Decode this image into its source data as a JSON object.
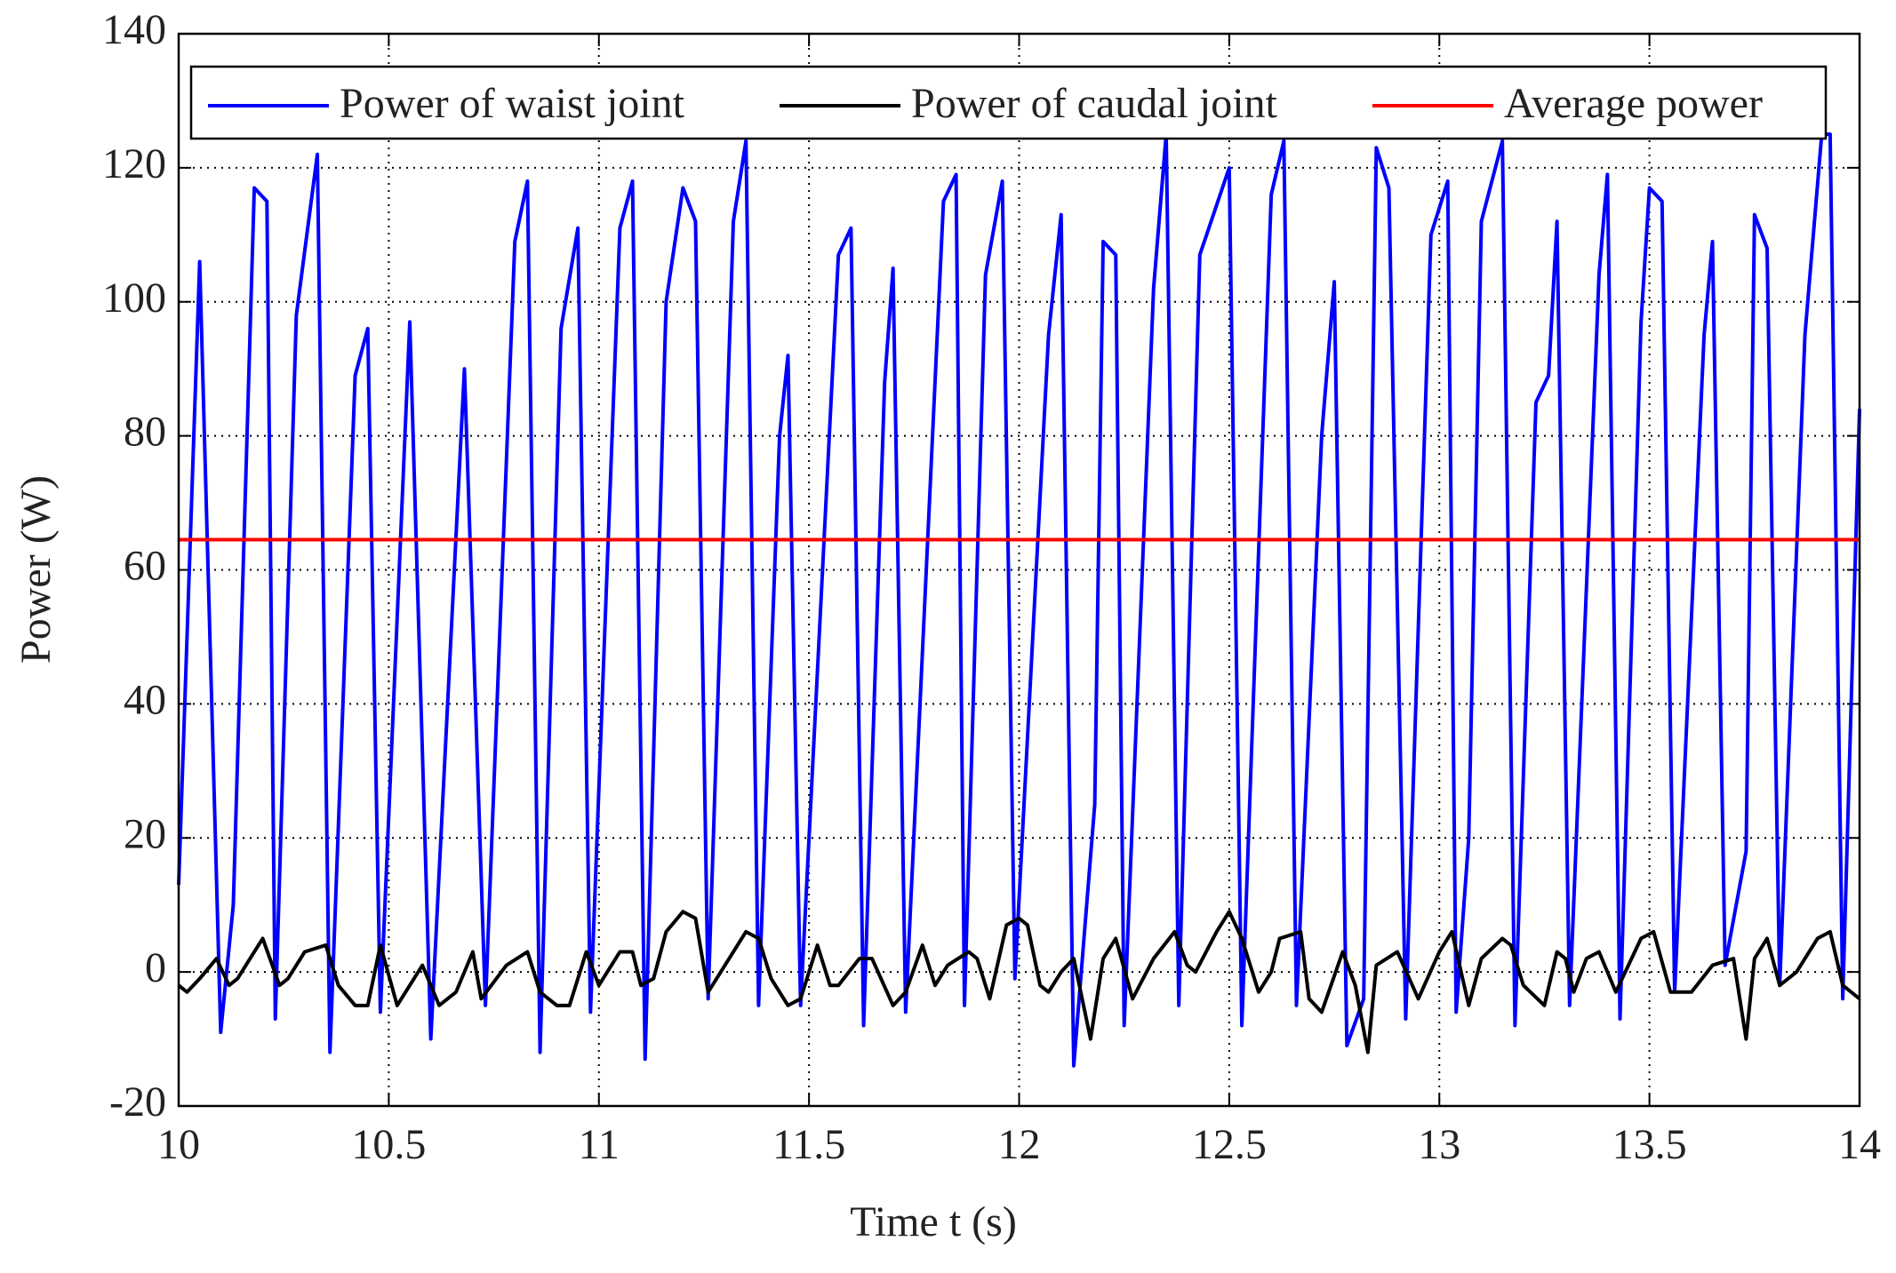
{
  "chart_data": {
    "type": "line",
    "xlabel": "Time t (s)",
    "ylabel": "Power (W)",
    "xlim": [
      10,
      14
    ],
    "xticks": [
      10,
      10.5,
      11,
      11.5,
      12,
      12.5,
      13,
      13.5,
      14
    ],
    "ylim": [
      -20,
      140
    ],
    "yticks": [
      -20,
      0,
      20,
      40,
      60,
      80,
      100,
      120,
      140
    ],
    "grid": true,
    "legend": "top",
    "series": [
      {
        "name": "Power of waist joint",
        "color": "#0000ff",
        "x": [
          10.0,
          10.05,
          10.1,
          10.13,
          10.18,
          10.21,
          10.23,
          10.28,
          10.33,
          10.36,
          10.42,
          10.45,
          10.48,
          10.55,
          10.6,
          10.68,
          10.73,
          10.8,
          10.83,
          10.86,
          10.91,
          10.95,
          10.98,
          11.05,
          11.08,
          11.11,
          11.16,
          11.2,
          11.23,
          11.26,
          11.32,
          11.35,
          11.38,
          11.43,
          11.45,
          11.48,
          11.57,
          11.6,
          11.63,
          11.68,
          11.7,
          11.73,
          11.82,
          11.85,
          11.87,
          11.92,
          11.96,
          11.99,
          12.07,
          12.1,
          12.13,
          12.18,
          12.2,
          12.23,
          12.25,
          12.32,
          12.35,
          12.38,
          12.43,
          12.5,
          12.53,
          12.6,
          12.63,
          12.66,
          12.72,
          12.75,
          12.78,
          12.82,
          12.85,
          12.88,
          12.92,
          12.98,
          13.02,
          13.04,
          13.07,
          13.1,
          13.15,
          13.18,
          13.23,
          13.26,
          13.28,
          13.31,
          13.38,
          13.4,
          13.43,
          13.48,
          13.5,
          13.53,
          13.56,
          13.63,
          13.65,
          13.68,
          13.73,
          13.75,
          13.78,
          13.81,
          13.87,
          13.91,
          13.93,
          13.96,
          14.0
        ],
        "values": [
          13,
          106,
          -9,
          10,
          117,
          115,
          -7,
          98,
          122,
          -12,
          89,
          96,
          -6,
          97,
          -10,
          90,
          -5,
          109,
          118,
          -12,
          96,
          111,
          -6,
          111,
          118,
          -13,
          100,
          117,
          112,
          -4,
          112,
          124,
          -5,
          80,
          92,
          -5,
          107,
          111,
          -8,
          88,
          105,
          -6,
          115,
          119,
          -5,
          104,
          118,
          -1,
          95,
          113,
          -14,
          25,
          109,
          107,
          -8,
          102,
          125,
          -5,
          107,
          120,
          -8,
          116,
          124,
          -5,
          80,
          103,
          -11,
          -4,
          123,
          117,
          -7,
          110,
          118,
          -6,
          20,
          112,
          124,
          -8,
          85,
          89,
          112,
          -5,
          104,
          119,
          -7,
          97,
          117,
          115,
          -3,
          95,
          109,
          1,
          18,
          113,
          108,
          -2,
          95,
          125,
          125,
          -4,
          84
        ]
      },
      {
        "name": "Power of caudal joint",
        "color": "#000000",
        "x": [
          10.0,
          10.02,
          10.05,
          10.09,
          10.12,
          10.14,
          10.18,
          10.2,
          10.24,
          10.26,
          10.3,
          10.35,
          10.38,
          10.42,
          10.45,
          10.48,
          10.52,
          10.58,
          10.62,
          10.66,
          10.7,
          10.72,
          10.78,
          10.83,
          10.86,
          10.9,
          10.93,
          10.97,
          11.0,
          11.05,
          11.08,
          11.1,
          11.13,
          11.16,
          11.2,
          11.23,
          11.26,
          11.3,
          11.35,
          11.38,
          11.41,
          11.45,
          11.48,
          11.52,
          11.55,
          11.57,
          11.62,
          11.65,
          11.7,
          11.73,
          11.77,
          11.8,
          11.83,
          11.88,
          11.9,
          11.93,
          11.97,
          12.0,
          12.02,
          12.05,
          12.07,
          12.1,
          12.13,
          12.17,
          12.2,
          12.23,
          12.27,
          12.32,
          12.37,
          12.4,
          12.42,
          12.47,
          12.5,
          12.53,
          12.57,
          12.6,
          12.62,
          12.67,
          12.69,
          12.72,
          12.77,
          12.8,
          12.83,
          12.85,
          12.9,
          12.95,
          13.0,
          13.03,
          13.07,
          13.1,
          13.15,
          13.17,
          13.2,
          13.25,
          13.28,
          13.3,
          13.32,
          13.35,
          13.38,
          13.42,
          13.48,
          13.51,
          13.55,
          13.6,
          13.65,
          13.7,
          13.73,
          13.75,
          13.78,
          13.81,
          13.85,
          13.9,
          13.93,
          13.96,
          14.0
        ],
        "values": [
          -2,
          -3,
          -1,
          2,
          -2,
          -1,
          3,
          5,
          -2,
          -1,
          3,
          4,
          -2,
          -5,
          -5,
          4,
          -5,
          1,
          -5,
          -3,
          3,
          -4,
          1,
          3,
          -3,
          -5,
          -5,
          3,
          -2,
          3,
          3,
          -2,
          -1,
          6,
          9,
          8,
          -3,
          1,
          6,
          5,
          -1,
          -5,
          -4,
          4,
          -2,
          -2,
          2,
          2,
          -5,
          -3,
          4,
          -2,
          1,
          3,
          2,
          -4,
          7,
          8,
          7,
          -2,
          -3,
          0,
          2,
          -10,
          2,
          5,
          -4,
          2,
          6,
          1,
          0,
          6,
          9,
          5,
          -3,
          0,
          5,
          6,
          -4,
          -6,
          3,
          -2,
          -12,
          1,
          3,
          -4,
          3,
          6,
          -5,
          2,
          5,
          4,
          -2,
          -5,
          3,
          2,
          -3,
          2,
          3,
          -3,
          5,
          6,
          -3,
          -3,
          1,
          2,
          -10,
          2,
          5,
          -2,
          0,
          5,
          6,
          -2,
          -4
        ]
      },
      {
        "name": "Average power",
        "color": "#ff0000",
        "x": [
          10,
          14
        ],
        "values": [
          64.5,
          64.5
        ]
      }
    ]
  }
}
